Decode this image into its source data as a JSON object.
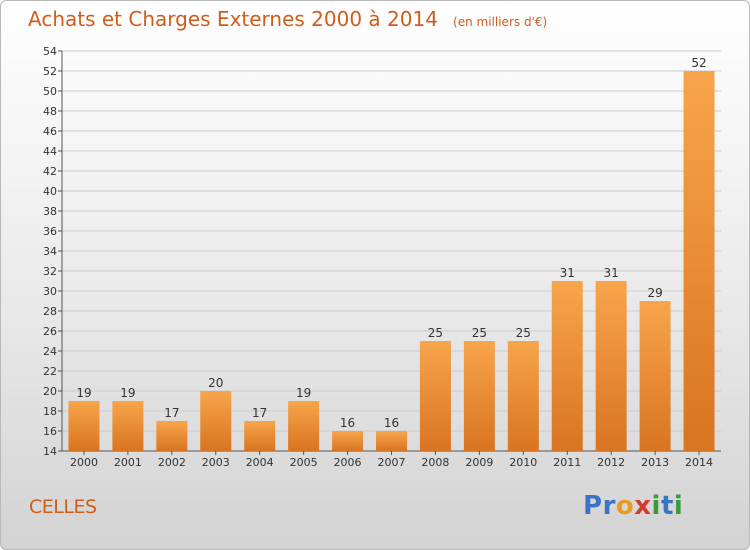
{
  "header": {
    "title": "Achats et Charges Externes 2000 à 2014",
    "unit": "(en milliers d'€)"
  },
  "commune": "CELLES",
  "logo": {
    "text": "Proxiti",
    "colors": [
      "#3a74c4",
      "#3a74c4",
      "#e89a21",
      "#d63a2a",
      "#3a9b3c",
      "#3a74c4",
      "#3a9b3c"
    ]
  },
  "colors": {
    "bar_light": "#f7a54b",
    "bar_dark": "#d97420",
    "grid": "#cccccc",
    "text": "#333333"
  },
  "chart_data": {
    "type": "bar",
    "title": "Achats et Charges Externes 2000 à 2014",
    "subtitle": "(en milliers d'€)",
    "categories": [
      "2000",
      "2001",
      "2002",
      "2003",
      "2004",
      "2005",
      "2006",
      "2007",
      "2008",
      "2009",
      "2010",
      "2011",
      "2012",
      "2013",
      "2014"
    ],
    "values": [
      19,
      19,
      17,
      20,
      17,
      19,
      16,
      16,
      25,
      25,
      25,
      31,
      31,
      29,
      52
    ],
    "ylim": [
      14,
      54
    ],
    "yticks": [
      14,
      16,
      18,
      20,
      22,
      24,
      26,
      28,
      30,
      32,
      34,
      36,
      38,
      40,
      42,
      44,
      46,
      48,
      50,
      52,
      54
    ],
    "grid": true,
    "legend": "none"
  }
}
